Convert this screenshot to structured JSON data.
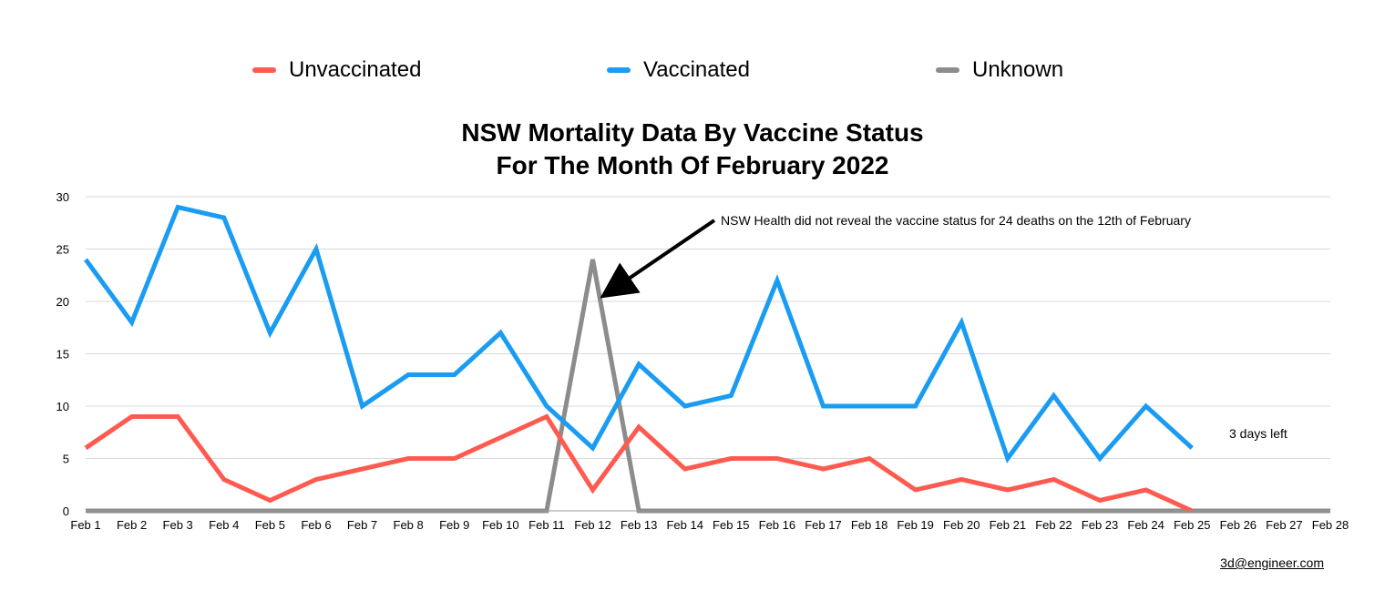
{
  "colors": {
    "unvaccinated": "#ff5a50",
    "vaccinated": "#1a9cf2",
    "unknown": "#8c8c8c",
    "grid": "#d9d9d9"
  },
  "chart_data": {
    "type": "line",
    "title_line1": "NSW Mortality Data By Vaccine Status",
    "title_line2": "For The Month Of February 2022",
    "categories": [
      "Feb 1",
      "Feb 2",
      "Feb 3",
      "Feb 4",
      "Feb 5",
      "Feb 6",
      "Feb 7",
      "Feb 8",
      "Feb 9",
      "Feb 10",
      "Feb 11",
      "Feb 12",
      "Feb 13",
      "Feb 14",
      "Feb 15",
      "Feb 16",
      "Feb 17",
      "Feb 18",
      "Feb 19",
      "Feb 20",
      "Feb 21",
      "Feb 22",
      "Feb 23",
      "Feb 24",
      "Feb 25",
      "Feb 26",
      "Feb 27",
      "Feb 28"
    ],
    "y_ticks": [
      0,
      5,
      10,
      15,
      20,
      25,
      30
    ],
    "ylim": [
      0,
      30
    ],
    "grid": true,
    "legend_position": "top",
    "series": [
      {
        "name": "Unvaccinated",
        "color_key": "unvaccinated",
        "values": [
          6,
          9,
          9,
          3,
          1,
          3,
          4,
          5,
          5,
          7,
          9,
          2,
          8,
          4,
          5,
          5,
          4,
          5,
          2,
          3,
          2,
          3,
          1,
          2,
          0,
          null,
          null,
          null
        ]
      },
      {
        "name": "Vaccinated",
        "color_key": "vaccinated",
        "values": [
          24,
          18,
          29,
          28,
          17,
          25,
          10,
          13,
          13,
          17,
          10,
          6,
          14,
          10,
          11,
          22,
          10,
          10,
          10,
          18,
          5,
          11,
          5,
          10,
          6,
          null,
          null,
          null
        ]
      },
      {
        "name": "Unknown",
        "color_key": "unknown",
        "values": [
          0,
          0,
          0,
          0,
          0,
          0,
          0,
          0,
          0,
          0,
          0,
          24,
          0,
          0,
          0,
          0,
          0,
          0,
          0,
          0,
          0,
          0,
          0,
          0,
          0,
          0,
          0,
          0
        ]
      }
    ],
    "annotations": [
      {
        "text": "NSW Health did not reveal the vaccine status for 24 deaths on the 12th of February",
        "arrow_to_category": "Feb 12",
        "arrow_to_value": 21
      },
      {
        "text": "3 days left"
      }
    ]
  },
  "credit": "3d@engineer.com"
}
